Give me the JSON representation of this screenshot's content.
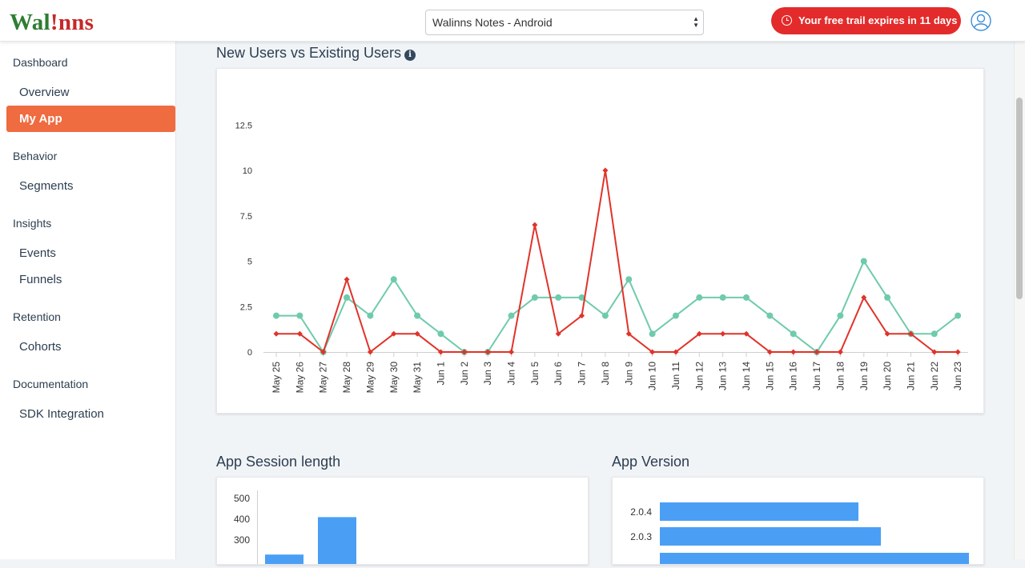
{
  "header": {
    "logo_left": "Wal",
    "logo_mid": "!",
    "logo_right": "nns",
    "app_select_value": "Walinns Notes - Android",
    "trial_text": "Your free trail expires in 11 days",
    "user_icon": "user-icon"
  },
  "sidebar": {
    "sections": [
      {
        "title": "Dashboard",
        "items": [
          "Overview",
          "My App"
        ]
      },
      {
        "title": "Behavior",
        "items": [
          "Segments"
        ]
      },
      {
        "title": "Insights",
        "items": [
          "Events",
          "Funnels"
        ]
      },
      {
        "title": "Retention",
        "items": [
          "Cohorts"
        ]
      },
      {
        "title": "Documentation",
        "items": [
          "SDK Integration"
        ]
      }
    ],
    "active_item": "My App"
  },
  "main": {
    "users_title": "New Users vs Existing Users",
    "session_title": "App Session length",
    "version_title": "App Version"
  },
  "colors": {
    "accent": "#ef6b40",
    "trial": "#e32b2b",
    "series_new": "#6fcbab",
    "series_existing": "#e0332a",
    "bar": "#4a9ff5"
  },
  "chart_data": [
    {
      "type": "line",
      "x": [
        "May 25",
        "May 26",
        "May 27",
        "May 28",
        "May 29",
        "May 30",
        "May 31",
        "Jun 1",
        "Jun 2",
        "Jun 3",
        "Jun 4",
        "Jun 5",
        "Jun 6",
        "Jun 7",
        "Jun 8",
        "Jun 9",
        "Jun 10",
        "Jun 11",
        "Jun 12",
        "Jun 13",
        "Jun 14",
        "Jun 15",
        "Jun 16",
        "Jun 17",
        "Jun 18",
        "Jun 19",
        "Jun 20",
        "Jun 21",
        "Jun 22",
        "Jun 23"
      ],
      "series": [
        {
          "values": [
            2,
            2,
            0,
            3,
            2,
            4,
            2,
            1,
            0,
            0,
            2,
            3,
            3,
            3,
            2,
            4,
            1,
            2,
            3,
            3,
            3,
            2,
            1,
            0,
            2,
            5,
            3,
            1,
            1,
            2
          ]
        },
        {
          "values": [
            1,
            1,
            0,
            4,
            0,
            1,
            1,
            0,
            0,
            0,
            0,
            7,
            1,
            2,
            10,
            1,
            0,
            0,
            1,
            1,
            1,
            0,
            0,
            0,
            0,
            3,
            1,
            1,
            0,
            0
          ]
        }
      ],
      "yticks": [
        "0",
        "2.5",
        "5",
        "7.5",
        "10",
        "12.5"
      ],
      "ylim": [
        0,
        12.5
      ],
      "grid": false
    },
    {
      "type": "bar",
      "values": [
        230,
        410
      ],
      "yticks": [
        "500",
        "400",
        "300"
      ],
      "ylim": [
        200,
        500
      ]
    },
    {
      "type": "bar",
      "orientation": "horizontal",
      "categories": [
        "2.0.4",
        "2.0.3"
      ],
      "values": [
        248,
        276
      ]
    }
  ]
}
